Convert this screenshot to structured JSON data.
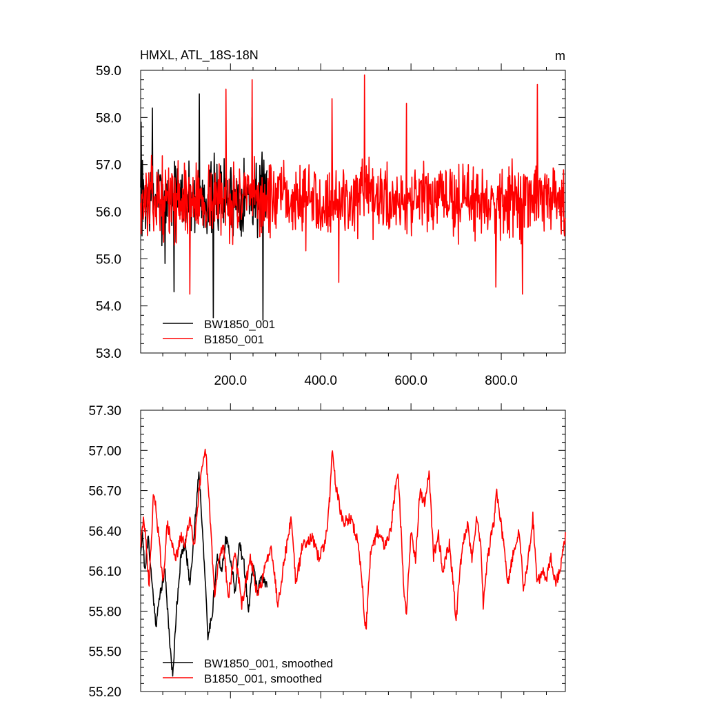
{
  "chart_data": [
    {
      "type": "line",
      "title": "HMXL, ATL_18S-18N",
      "units": "m",
      "xlim": [
        1,
        942
      ],
      "ylim": [
        53.0,
        59.0
      ],
      "xticks": [
        200,
        400,
        600,
        800
      ],
      "xtick_labels": [
        "200.0",
        "400.0",
        "600.0",
        "800.0"
      ],
      "yticks": [
        53,
        54,
        55,
        56,
        57,
        58,
        59
      ],
      "ytick_labels": [
        "53.0",
        "54.0",
        "55.0",
        "56.0",
        "57.0",
        "58.0",
        "59.0"
      ],
      "legend_position": "bottom-left",
      "series": [
        {
          "name": "BW1850_001",
          "color": "#000000",
          "x_start": 1,
          "x_end": 281,
          "mean": 56.3,
          "amplitude": 0.75,
          "seed": 7,
          "key_points": [
            [
              2,
              57.9
            ],
            [
              27,
              58.2
            ],
            [
              55,
              54.9
            ],
            [
              75,
              54.3
            ],
            [
              131,
              58.5
            ],
            [
              162,
              53.75
            ],
            [
              248,
              58.0
            ],
            [
              272,
              53.7
            ]
          ]
        },
        {
          "name": "B1850_001",
          "color": "#ff0000",
          "x_start": 1,
          "x_end": 942,
          "mean": 56.25,
          "amplitude": 0.7,
          "seed": 13,
          "key_points": [
            [
              110,
              54.25
            ],
            [
              190,
              58.6
            ],
            [
              248,
              58.8
            ],
            [
              425,
              58.4
            ],
            [
              440,
              54.5
            ],
            [
              497,
              58.9
            ],
            [
              590,
              58.3
            ],
            [
              788,
              54.4
            ],
            [
              847,
              54.25
            ],
            [
              880,
              58.7
            ]
          ]
        }
      ]
    },
    {
      "type": "line",
      "xlim": [
        1,
        942
      ],
      "ylim": [
        55.2,
        57.3
      ],
      "xticks": [
        200,
        400,
        600,
        800
      ],
      "yticks": [
        55.2,
        55.5,
        55.8,
        56.1,
        56.4,
        56.7,
        57.0,
        57.3
      ],
      "ytick_labels": [
        "55.20",
        "55.50",
        "55.80",
        "56.10",
        "56.40",
        "56.70",
        "57.00",
        "57.30"
      ],
      "legend_position": "bottom-left",
      "series": [
        {
          "name": "BW1850_001, smoothed",
          "color": "#000000",
          "x_start": 1,
          "x_end": 281,
          "knots": [
            [
              1,
              56.25
            ],
            [
              5,
              56.4
            ],
            [
              10,
              56.1
            ],
            [
              18,
              56.35
            ],
            [
              25,
              56.05
            ],
            [
              35,
              55.7
            ],
            [
              45,
              55.95
            ],
            [
              55,
              56.1
            ],
            [
              65,
              55.6
            ],
            [
              72,
              55.3
            ],
            [
              80,
              55.8
            ],
            [
              90,
              56.2
            ],
            [
              100,
              56.3
            ],
            [
              110,
              56.0
            ],
            [
              120,
              56.4
            ],
            [
              130,
              56.85
            ],
            [
              140,
              56.3
            ],
            [
              150,
              55.6
            ],
            [
              160,
              55.8
            ],
            [
              170,
              56.2
            ],
            [
              180,
              56.1
            ],
            [
              190,
              56.35
            ],
            [
              200,
              56.2
            ],
            [
              210,
              55.95
            ],
            [
              220,
              56.3
            ],
            [
              230,
              56.15
            ],
            [
              240,
              55.8
            ],
            [
              250,
              56.15
            ],
            [
              260,
              55.95
            ],
            [
              270,
              56.05
            ],
            [
              281,
              56.0
            ]
          ],
          "roughness": 0.08,
          "seed": 21
        },
        {
          "name": "B1850_001, smoothed",
          "color": "#ff0000",
          "x_start": 1,
          "x_end": 942,
          "knots": [
            [
              1,
              56.3
            ],
            [
              8,
              56.5
            ],
            [
              20,
              56.0
            ],
            [
              30,
              56.7
            ],
            [
              40,
              56.4
            ],
            [
              50,
              56.0
            ],
            [
              60,
              56.45
            ],
            [
              70,
              56.3
            ],
            [
              80,
              56.2
            ],
            [
              90,
              56.35
            ],
            [
              100,
              56.3
            ],
            [
              110,
              56.5
            ],
            [
              120,
              56.3
            ],
            [
              130,
              56.7
            ],
            [
              145,
              57.0
            ],
            [
              155,
              56.5
            ],
            [
              165,
              55.9
            ],
            [
              175,
              56.2
            ],
            [
              185,
              56.3
            ],
            [
              195,
              55.9
            ],
            [
              210,
              56.25
            ],
            [
              225,
              55.85
            ],
            [
              245,
              56.2
            ],
            [
              260,
              55.9
            ],
            [
              275,
              56.1
            ],
            [
              290,
              56.3
            ],
            [
              305,
              55.85
            ],
            [
              320,
              56.2
            ],
            [
              335,
              56.5
            ],
            [
              345,
              56.0
            ],
            [
              360,
              56.3
            ],
            [
              380,
              56.35
            ],
            [
              395,
              56.2
            ],
            [
              410,
              56.3
            ],
            [
              420,
              56.65
            ],
            [
              425,
              57.0
            ],
            [
              435,
              56.7
            ],
            [
              450,
              56.45
            ],
            [
              465,
              56.5
            ],
            [
              480,
              56.35
            ],
            [
              490,
              56.1
            ],
            [
              495,
              55.85
            ],
            [
              500,
              55.65
            ],
            [
              510,
              56.2
            ],
            [
              525,
              56.4
            ],
            [
              540,
              56.3
            ],
            [
              555,
              56.4
            ],
            [
              570,
              56.85
            ],
            [
              575,
              56.6
            ],
            [
              585,
              55.9
            ],
            [
              590,
              55.8
            ],
            [
              600,
              56.4
            ],
            [
              610,
              56.2
            ],
            [
              620,
              56.7
            ],
            [
              630,
              56.6
            ],
            [
              640,
              56.85
            ],
            [
              650,
              56.2
            ],
            [
              660,
              56.4
            ],
            [
              670,
              56.1
            ],
            [
              685,
              56.3
            ],
            [
              695,
              55.95
            ],
            [
              700,
              55.7
            ],
            [
              705,
              56.0
            ],
            [
              715,
              56.3
            ],
            [
              725,
              56.45
            ],
            [
              735,
              56.2
            ],
            [
              745,
              56.5
            ],
            [
              755,
              56.3
            ],
            [
              760,
              55.85
            ],
            [
              770,
              56.2
            ],
            [
              785,
              56.5
            ],
            [
              790,
              56.7
            ],
            [
              805,
              56.3
            ],
            [
              815,
              56.0
            ],
            [
              825,
              56.2
            ],
            [
              840,
              56.4
            ],
            [
              850,
              55.95
            ],
            [
              860,
              56.2
            ],
            [
              870,
              56.5
            ],
            [
              880,
              56.0
            ],
            [
              890,
              56.1
            ],
            [
              900,
              56.05
            ],
            [
              910,
              56.2
            ],
            [
              920,
              56.0
            ],
            [
              930,
              56.1
            ],
            [
              942,
              56.35
            ]
          ],
          "roughness": 0.09,
          "seed": 29
        }
      ]
    }
  ]
}
